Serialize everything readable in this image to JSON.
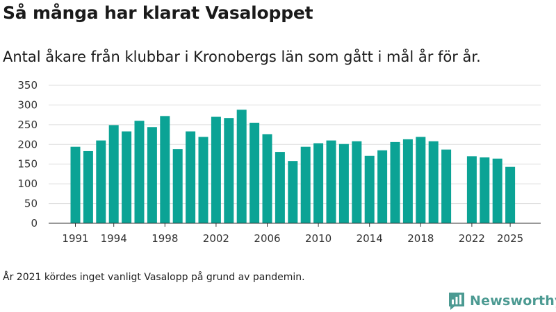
{
  "title": "Så många har klarat Vasaloppet",
  "subtitle": "Antal åkare från klubbar i Kronobergs län som gått i mål år för år.",
  "footnote": "År 2021 kördes inget vanligt Vasalopp på grund av pandemin.",
  "brand": {
    "name": "Newsworthy",
    "icon": "newsworthy-logo-icon",
    "color": "#4c9a92"
  },
  "colors": {
    "bar": "#0ba395",
    "grid": "#dddddd",
    "axis": "#333333"
  },
  "chart_data": {
    "type": "bar",
    "title": "Så många har klarat Vasaloppet",
    "xlabel": "",
    "ylabel": "",
    "ylim": [
      0,
      350
    ],
    "yticks": [
      0,
      50,
      100,
      150,
      200,
      250,
      300,
      350
    ],
    "xticks": [
      1991,
      1994,
      1998,
      2002,
      2006,
      2010,
      2014,
      2018,
      2022,
      2025
    ],
    "grid": true,
    "categories": [
      1991,
      1992,
      1993,
      1994,
      1995,
      1996,
      1997,
      1998,
      1999,
      2000,
      2001,
      2002,
      2003,
      2004,
      2005,
      2006,
      2007,
      2008,
      2009,
      2010,
      2011,
      2012,
      2013,
      2014,
      2015,
      2016,
      2017,
      2018,
      2019,
      2020,
      2021,
      2022,
      2023,
      2024,
      2025
    ],
    "values": [
      194,
      183,
      210,
      249,
      233,
      260,
      244,
      272,
      188,
      233,
      219,
      270,
      267,
      288,
      255,
      226,
      181,
      158,
      194,
      203,
      210,
      201,
      208,
      171,
      185,
      206,
      213,
      219,
      208,
      187,
      null,
      170,
      167,
      164,
      143
    ]
  }
}
